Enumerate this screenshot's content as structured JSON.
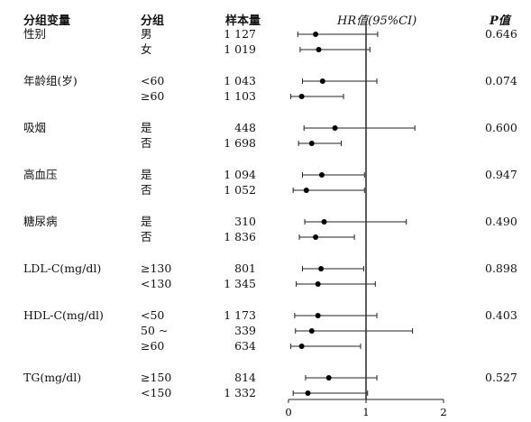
{
  "chart_data": {
    "type": "forest",
    "headers": {
      "group_var": "分组变量",
      "group": "分组",
      "n": "样本量",
      "hr": "HR值(95%CI)",
      "p": "P值"
    },
    "x_axis": {
      "range": [
        0,
        2
      ],
      "ticks": [
        "0",
        "1",
        "2"
      ],
      "reference_line": 1
    },
    "variables": [
      {
        "name": "性别",
        "p": "0.646",
        "rows": [
          {
            "group": "男",
            "n": "1 127",
            "hr": 0.35,
            "ci": [
              0.12,
              1.15
            ]
          },
          {
            "group": "女",
            "n": "1 019",
            "hr": 0.39,
            "ci": [
              0.15,
              1.05
            ]
          }
        ]
      },
      {
        "name": "年龄组(岁)",
        "p": "0.074",
        "rows": [
          {
            "group": "<60",
            "n": "1 043",
            "hr": 0.44,
            "ci": [
              0.18,
              1.14
            ]
          },
          {
            "group": "≥60",
            "n": "1 103",
            "hr": 0.17,
            "ci": [
              0.03,
              0.71
            ]
          }
        ]
      },
      {
        "name": "吸烟",
        "p": "0.600",
        "rows": [
          {
            "group": "是",
            "n": "448",
            "hr": 0.6,
            "ci": [
              0.2,
              1.63
            ]
          },
          {
            "group": "否",
            "n": "1 698",
            "hr": 0.3,
            "ci": [
              0.13,
              0.68
            ]
          }
        ]
      },
      {
        "name": "高血压",
        "p": "0.947",
        "rows": [
          {
            "group": "是",
            "n": "1 094",
            "hr": 0.43,
            "ci": [
              0.18,
              0.98
            ]
          },
          {
            "group": "否",
            "n": "1 052",
            "hr": 0.23,
            "ci": [
              0.06,
              0.98
            ]
          }
        ]
      },
      {
        "name": "糖尿病",
        "p": "0.490",
        "rows": [
          {
            "group": "是",
            "n": "310",
            "hr": 0.46,
            "ci": [
              0.21,
              1.52
            ]
          },
          {
            "group": "否",
            "n": "1 836",
            "hr": 0.35,
            "ci": [
              0.14,
              0.85
            ]
          }
        ]
      },
      {
        "name": "LDL-C(mg/dl)",
        "p": "0.898",
        "rows": [
          {
            "group": "≥130",
            "n": "801",
            "hr": 0.42,
            "ci": [
              0.18,
              0.97
            ]
          },
          {
            "group": "<130",
            "n": "1 345",
            "hr": 0.38,
            "ci": [
              0.1,
              1.12
            ]
          }
        ]
      },
      {
        "name": "HDL-C(mg/dl)",
        "p": "0.403",
        "rows": [
          {
            "group": "<50",
            "n": "1 173",
            "hr": 0.38,
            "ci": [
              0.08,
              1.14
            ]
          },
          {
            "group": "50 ~",
            "n": "339",
            "hr": 0.3,
            "ci": [
              0.09,
              1.6
            ]
          },
          {
            "group": "≥60",
            "n": "634",
            "hr": 0.17,
            "ci": [
              0.03,
              0.93
            ]
          }
        ]
      },
      {
        "name": "TG(mg/dl)",
        "p": "0.527",
        "rows": [
          {
            "group": "≥150",
            "n": "814",
            "hr": 0.52,
            "ci": [
              0.22,
              1.14
            ]
          },
          {
            "group": "<150",
            "n": "1 332",
            "hr": 0.25,
            "ci": [
              0.06,
              1.02
            ]
          }
        ]
      }
    ]
  }
}
